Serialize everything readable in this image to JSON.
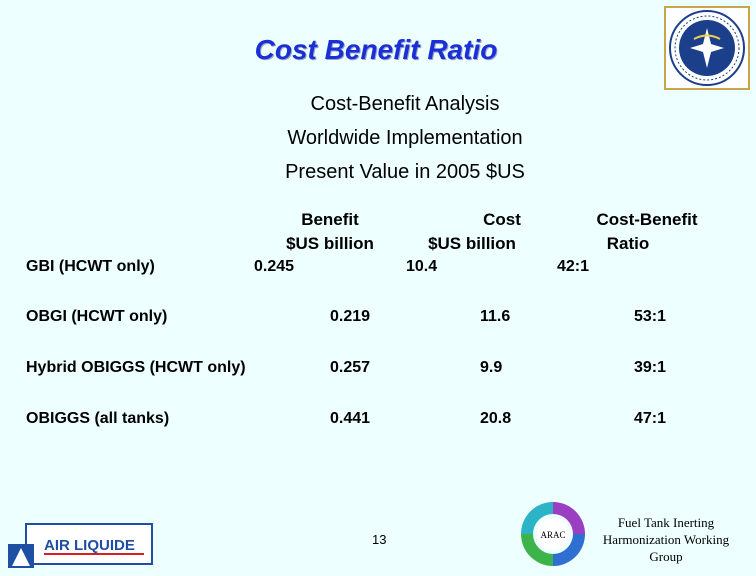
{
  "title": "Cost Benefit Ratio",
  "subtitle_lines": [
    "Cost-Benefit Analysis",
    "Worldwide Implementation",
    "Present Value in 2005 $US"
  ],
  "columns": {
    "benefit": [
      "Benefit",
      "$US billion"
    ],
    "cost": [
      "Cost",
      "$US billion"
    ],
    "ratio": [
      "Cost-Benefit",
      "Ratio"
    ]
  },
  "rows": [
    {
      "label": "GBI (HCWT only)",
      "benefit": "0.245",
      "cost": "10.4",
      "ratio": "42:1"
    },
    {
      "label": "OBGI (HCWT only)",
      "benefit": "0.219",
      "cost": "11.6",
      "ratio": "53:1"
    },
    {
      "label": "Hybrid OBIGGS (HCWT only)",
      "benefit": "0.257",
      "cost": "9.9",
      "ratio": "39:1"
    },
    {
      "label": "OBIGGS (all tanks)",
      "benefit": "0.441",
      "cost": "20.8",
      "ratio": "47:1"
    }
  ],
  "footer": {
    "page_number": "13",
    "group_lines": [
      "Fuel Tank Inerting",
      "Harmonization Working",
      "Group"
    ],
    "company_logo_text": "AIR LIQUIDE",
    "arac_logo_text": "ARAC"
  },
  "logos": {
    "faa_seal_text": "FEDERAL AVIATION ADMINISTRATION"
  },
  "colors": {
    "background": "#eeffff",
    "title": "#1a2fd6",
    "faa_seal_border": "#c8a54a",
    "faa_seal_center": "#1b3f8a",
    "air_liquide_blue": "#1e4fa3",
    "air_liquide_red": "#d71e28"
  }
}
